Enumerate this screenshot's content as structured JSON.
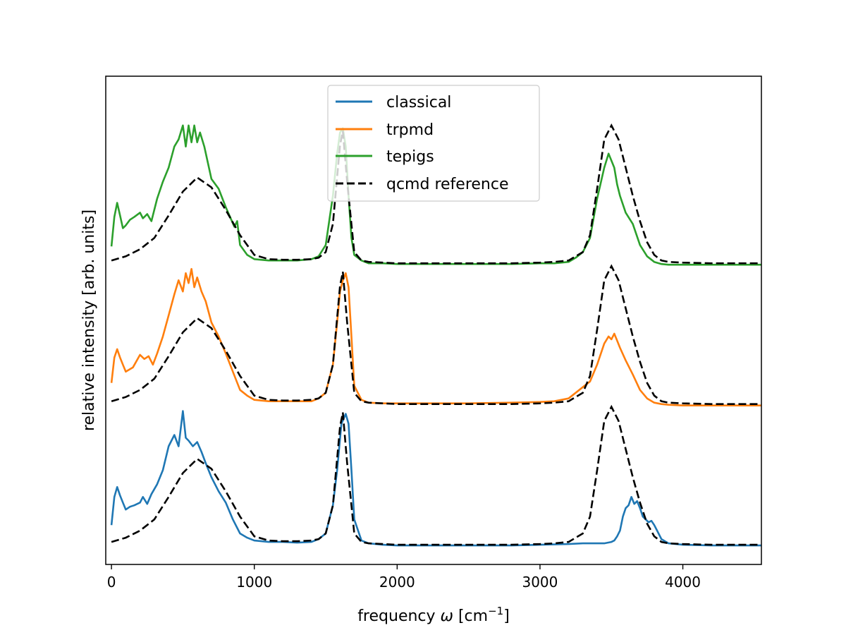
{
  "chart_data": {
    "type": "line",
    "title": "",
    "xlabel_main": "frequency ",
    "xlabel_omega": "ω",
    "xlabel_open": " [cm",
    "xlabel_exp": "−1",
    "xlabel_close": "]",
    "ylabel": "relative intensity [arb. units]",
    "xlim": [
      -40,
      4550
    ],
    "ylim": [
      -0.12,
      3.35
    ],
    "y_ticks_shown": false,
    "x_ticks": [
      0,
      1000,
      2000,
      3000,
      4000
    ],
    "x_tick_labels": [
      "0",
      "1000",
      "2000",
      "3000",
      "4000"
    ],
    "grid": false,
    "legend_position": "top-center",
    "legend": [
      "classical",
      "trpmd",
      "tepigs",
      "qcmd reference"
    ],
    "colors": {
      "classical": "#1f77b4",
      "trpmd": "#ff7f0e",
      "tepigs": "#2ca02c",
      "reference": "#000000"
    },
    "offsets": {
      "classical": 0.0,
      "trpmd": 1.0,
      "tepigs": 2.0
    },
    "reference": {
      "name": "qcmd reference",
      "x": [
        0,
        100,
        200,
        300,
        400,
        500,
        600,
        700,
        800,
        900,
        1000,
        1100,
        1200,
        1300,
        1400,
        1450,
        1500,
        1550,
        1600,
        1620,
        1650,
        1700,
        1750,
        1800,
        1900,
        2000,
        2200,
        2400,
        2600,
        2800,
        3000,
        3100,
        3200,
        3300,
        3350,
        3400,
        3450,
        3500,
        3550,
        3600,
        3650,
        3700,
        3750,
        3800,
        3850,
        3900,
        4000,
        4200,
        4550
      ],
      "y": [
        0.04,
        0.07,
        0.12,
        0.2,
        0.36,
        0.53,
        0.63,
        0.56,
        0.4,
        0.22,
        0.08,
        0.05,
        0.045,
        0.045,
        0.05,
        0.06,
        0.1,
        0.3,
        0.86,
        0.96,
        0.6,
        0.1,
        0.04,
        0.03,
        0.025,
        0.02,
        0.02,
        0.02,
        0.02,
        0.02,
        0.025,
        0.03,
        0.04,
        0.1,
        0.22,
        0.55,
        0.9,
        1.0,
        0.9,
        0.7,
        0.5,
        0.32,
        0.17,
        0.08,
        0.04,
        0.03,
        0.025,
        0.02,
        0.02
      ]
    },
    "series": [
      {
        "name": "classical",
        "x": [
          0,
          20,
          40,
          60,
          80,
          100,
          130,
          160,
          200,
          220,
          250,
          280,
          320,
          360,
          400,
          440,
          470,
          500,
          520,
          540,
          570,
          600,
          630,
          660,
          700,
          750,
          800,
          850,
          900,
          950,
          1000,
          1100,
          1200,
          1300,
          1400,
          1450,
          1500,
          1550,
          1580,
          1610,
          1640,
          1660,
          1680,
          1700,
          1750,
          1800,
          1900,
          2000,
          2200,
          2500,
          2800,
          3000,
          3200,
          3300,
          3400,
          3450,
          3500,
          3520,
          3540,
          3560,
          3580,
          3600,
          3620,
          3640,
          3660,
          3680,
          3700,
          3720,
          3740,
          3760,
          3780,
          3800,
          3820,
          3850,
          3900,
          4000,
          4200,
          4550
        ],
        "y": [
          0.16,
          0.36,
          0.43,
          0.37,
          0.32,
          0.27,
          0.29,
          0.3,
          0.32,
          0.36,
          0.31,
          0.38,
          0.45,
          0.55,
          0.72,
          0.8,
          0.72,
          0.97,
          0.78,
          0.76,
          0.72,
          0.75,
          0.68,
          0.6,
          0.5,
          0.4,
          0.32,
          0.2,
          0.1,
          0.07,
          0.05,
          0.04,
          0.04,
          0.035,
          0.04,
          0.06,
          0.1,
          0.3,
          0.55,
          0.88,
          0.95,
          0.88,
          0.55,
          0.2,
          0.05,
          0.03,
          0.02,
          0.015,
          0.015,
          0.015,
          0.015,
          0.02,
          0.025,
          0.03,
          0.03,
          0.03,
          0.04,
          0.05,
          0.08,
          0.12,
          0.22,
          0.28,
          0.3,
          0.36,
          0.31,
          0.33,
          0.28,
          0.22,
          0.2,
          0.18,
          0.19,
          0.16,
          0.12,
          0.06,
          0.03,
          0.02,
          0.015,
          0.015
        ]
      },
      {
        "name": "trpmd",
        "x": [
          0,
          20,
          40,
          60,
          80,
          100,
          150,
          200,
          230,
          260,
          290,
          320,
          360,
          400,
          440,
          470,
          500,
          520,
          540,
          560,
          580,
          600,
          630,
          660,
          700,
          750,
          800,
          850,
          900,
          950,
          1000,
          1100,
          1200,
          1300,
          1400,
          1450,
          1500,
          1550,
          1580,
          1600,
          1620,
          1640,
          1660,
          1680,
          1700,
          1750,
          1800,
          1900,
          2000,
          2200,
          2500,
          2800,
          3000,
          3100,
          3200,
          3250,
          3300,
          3350,
          3400,
          3450,
          3480,
          3500,
          3520,
          3540,
          3560,
          3600,
          3650,
          3700,
          3750,
          3800,
          3850,
          3900,
          4000,
          4200,
          4550
        ],
        "y": [
          0.17,
          0.35,
          0.41,
          0.35,
          0.3,
          0.25,
          0.28,
          0.37,
          0.34,
          0.36,
          0.3,
          0.38,
          0.5,
          0.65,
          0.8,
          0.9,
          0.82,
          0.95,
          0.88,
          0.98,
          0.85,
          0.92,
          0.82,
          0.75,
          0.6,
          0.5,
          0.38,
          0.25,
          0.12,
          0.08,
          0.05,
          0.04,
          0.04,
          0.04,
          0.04,
          0.06,
          0.1,
          0.3,
          0.6,
          0.82,
          0.9,
          0.95,
          0.85,
          0.5,
          0.15,
          0.05,
          0.03,
          0.025,
          0.025,
          0.025,
          0.025,
          0.03,
          0.035,
          0.04,
          0.06,
          0.1,
          0.14,
          0.18,
          0.3,
          0.45,
          0.5,
          0.48,
          0.52,
          0.47,
          0.42,
          0.33,
          0.23,
          0.12,
          0.06,
          0.03,
          0.02,
          0.015,
          0.01,
          0.01,
          0.01
        ]
      },
      {
        "name": "tepigs",
        "x": [
          0,
          20,
          40,
          60,
          80,
          100,
          130,
          160,
          200,
          220,
          250,
          280,
          320,
          360,
          400,
          440,
          470,
          500,
          520,
          540,
          560,
          580,
          600,
          620,
          650,
          700,
          750,
          800,
          830,
          860,
          880,
          900,
          950,
          1000,
          1100,
          1200,
          1300,
          1400,
          1450,
          1500,
          1550,
          1580,
          1600,
          1620,
          1640,
          1660,
          1680,
          1700,
          1750,
          1800,
          1900,
          2000,
          2200,
          2500,
          2800,
          3000,
          3100,
          3200,
          3250,
          3300,
          3350,
          3400,
          3450,
          3480,
          3500,
          3520,
          3540,
          3560,
          3600,
          3650,
          3700,
          3750,
          3800,
          3850,
          3900,
          4000,
          4200,
          4550
        ],
        "y": [
          0.14,
          0.35,
          0.45,
          0.36,
          0.27,
          0.29,
          0.33,
          0.35,
          0.38,
          0.34,
          0.37,
          0.32,
          0.48,
          0.6,
          0.7,
          0.85,
          0.9,
          1.0,
          0.85,
          1.0,
          0.88,
          1.0,
          0.88,
          0.95,
          0.85,
          0.62,
          0.55,
          0.42,
          0.35,
          0.28,
          0.32,
          0.15,
          0.08,
          0.05,
          0.04,
          0.04,
          0.04,
          0.05,
          0.07,
          0.15,
          0.5,
          0.8,
          0.95,
          0.98,
          0.85,
          0.5,
          0.2,
          0.08,
          0.04,
          0.02,
          0.02,
          0.015,
          0.015,
          0.015,
          0.015,
          0.02,
          0.02,
          0.03,
          0.06,
          0.1,
          0.2,
          0.48,
          0.7,
          0.8,
          0.75,
          0.7,
          0.58,
          0.5,
          0.38,
          0.3,
          0.15,
          0.07,
          0.03,
          0.015,
          0.01,
          0.01,
          0.01,
          0.01
        ]
      }
    ]
  }
}
